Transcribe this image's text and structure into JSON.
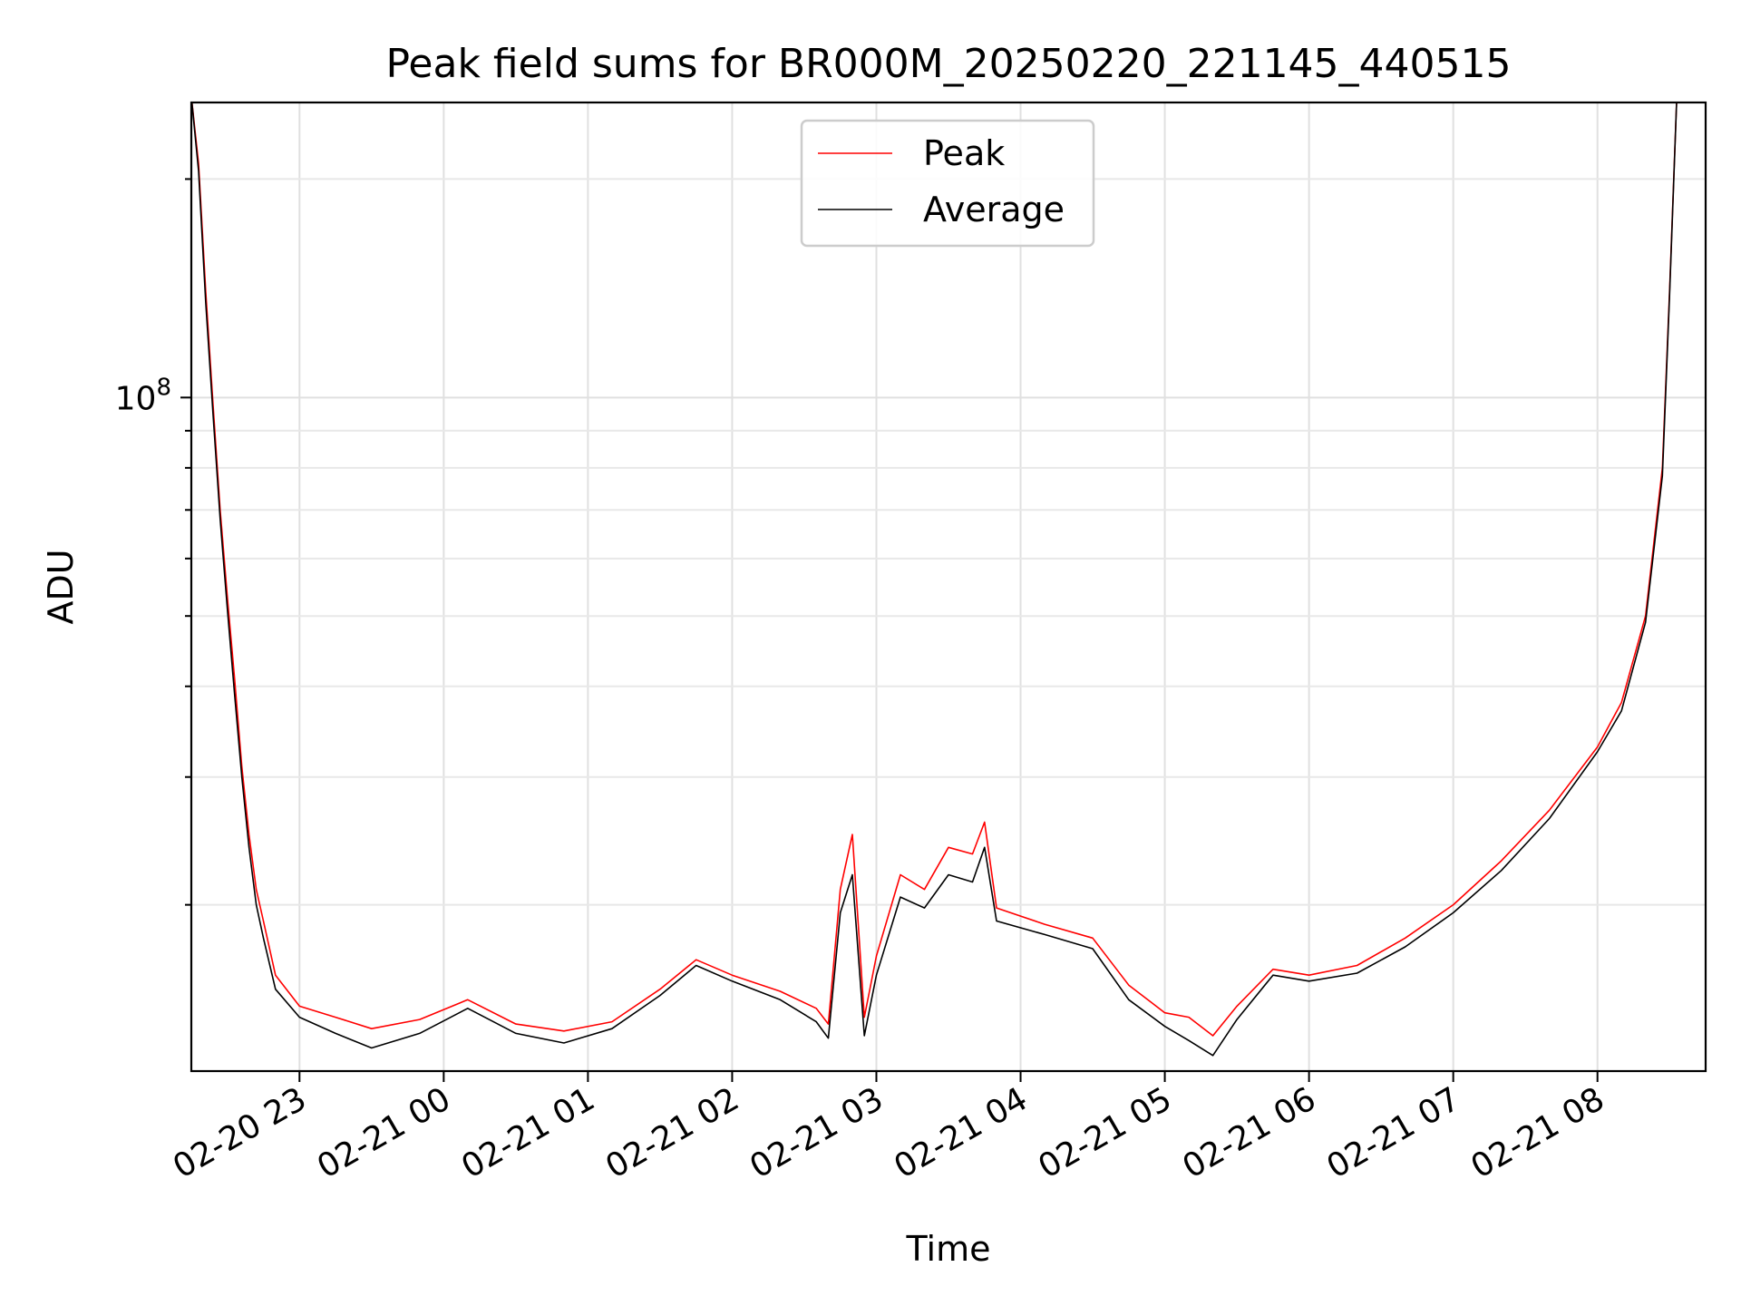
{
  "chart_data": {
    "type": "line",
    "title": "Peak field sums for BR000M_20250220_221145_440515",
    "xlabel": "Time",
    "ylabel": "ADU",
    "yscale": "log",
    "ylim": [
      11800000,
      255000000
    ],
    "xlim": [
      "2025-02-20 22:15",
      "2025-02-21 08:45"
    ],
    "grid": true,
    "legend_position": "upper center",
    "x_ticks": [
      "02-20 23",
      "02-21 00",
      "02-21 01",
      "02-21 02",
      "02-21 03",
      "02-21 04",
      "02-21 05",
      "02-21 06",
      "02-21 07",
      "02-21 08"
    ],
    "y_major_tick": {
      "value": 100000000,
      "label_base": "10",
      "label_exp": "8"
    },
    "colors": {
      "peak": "#ff0000",
      "average": "#000000"
    },
    "series": [
      {
        "name": "Peak",
        "color": "#ff0000",
        "x": [
          "2025-02-20 22:15",
          "2025-02-20 22:18",
          "2025-02-20 22:21",
          "2025-02-20 22:24",
          "2025-02-20 22:27",
          "2025-02-20 22:30",
          "2025-02-20 22:33",
          "2025-02-20 22:36",
          "2025-02-20 22:39",
          "2025-02-20 22:42",
          "2025-02-20 22:45",
          "2025-02-20 22:50",
          "2025-02-20 23:00",
          "2025-02-20 23:15",
          "2025-02-20 23:30",
          "2025-02-20 23:50",
          "2025-02-21 00:10",
          "2025-02-21 00:30",
          "2025-02-21 00:50",
          "2025-02-21 01:10",
          "2025-02-21 01:30",
          "2025-02-21 01:45",
          "2025-02-21 02:00",
          "2025-02-21 02:20",
          "2025-02-21 02:35",
          "2025-02-21 02:40",
          "2025-02-21 02:45",
          "2025-02-21 02:50",
          "2025-02-21 02:55",
          "2025-02-21 03:00",
          "2025-02-21 03:10",
          "2025-02-21 03:20",
          "2025-02-21 03:30",
          "2025-02-21 03:40",
          "2025-02-21 03:45",
          "2025-02-21 03:50",
          "2025-02-21 04:10",
          "2025-02-21 04:30",
          "2025-02-21 04:45",
          "2025-02-21 05:00",
          "2025-02-21 05:10",
          "2025-02-21 05:20",
          "2025-02-21 05:30",
          "2025-02-21 05:45",
          "2025-02-21 06:00",
          "2025-02-21 06:20",
          "2025-02-21 06:40",
          "2025-02-21 07:00",
          "2025-02-21 07:20",
          "2025-02-21 07:40",
          "2025-02-21 08:00",
          "2025-02-21 08:10",
          "2025-02-21 08:20",
          "2025-02-21 08:27",
          "2025-02-21 08:30",
          "2025-02-21 08:33"
        ],
        "values": [
          260000000,
          210000000,
          140000000,
          98000000,
          70000000,
          53000000,
          41000000,
          31000000,
          25000000,
          21000000,
          19000000,
          16000000,
          14500000,
          14000000,
          13500000,
          13900000,
          14800000,
          13700000,
          13400000,
          13800000,
          15300000,
          16800000,
          16000000,
          15200000,
          14400000,
          13700000,
          21000000,
          25000000,
          14000000,
          17000000,
          22000000,
          21000000,
          24000000,
          23500000,
          26000000,
          19800000,
          18800000,
          18000000,
          15500000,
          14200000,
          14000000,
          13200000,
          14500000,
          16300000,
          16000000,
          16500000,
          18000000,
          20000000,
          23000000,
          27000000,
          33000000,
          38000000,
          50000000,
          80000000,
          140000000,
          260000000
        ]
      },
      {
        "name": "Average",
        "color": "#000000",
        "x": [
          "2025-02-20 22:15",
          "2025-02-20 22:18",
          "2025-02-20 22:21",
          "2025-02-20 22:24",
          "2025-02-20 22:27",
          "2025-02-20 22:30",
          "2025-02-20 22:33",
          "2025-02-20 22:36",
          "2025-02-20 22:39",
          "2025-02-20 22:42",
          "2025-02-20 22:45",
          "2025-02-20 22:50",
          "2025-02-20 23:00",
          "2025-02-20 23:15",
          "2025-02-20 23:30",
          "2025-02-20 23:50",
          "2025-02-21 00:10",
          "2025-02-21 00:30",
          "2025-02-21 00:50",
          "2025-02-21 01:10",
          "2025-02-21 01:30",
          "2025-02-21 01:45",
          "2025-02-21 02:00",
          "2025-02-21 02:20",
          "2025-02-21 02:35",
          "2025-02-21 02:40",
          "2025-02-21 02:45",
          "2025-02-21 02:50",
          "2025-02-21 02:55",
          "2025-02-21 03:00",
          "2025-02-21 03:10",
          "2025-02-21 03:20",
          "2025-02-21 03:30",
          "2025-02-21 03:40",
          "2025-02-21 03:45",
          "2025-02-21 03:50",
          "2025-02-21 04:10",
          "2025-02-21 04:30",
          "2025-02-21 04:45",
          "2025-02-21 05:00",
          "2025-02-21 05:10",
          "2025-02-21 05:20",
          "2025-02-21 05:30",
          "2025-02-21 05:45",
          "2025-02-21 06:00",
          "2025-02-21 06:20",
          "2025-02-21 06:40",
          "2025-02-21 07:00",
          "2025-02-21 07:20",
          "2025-02-21 07:40",
          "2025-02-21 08:00",
          "2025-02-21 08:10",
          "2025-02-21 08:20",
          "2025-02-21 08:27",
          "2025-02-21 08:30",
          "2025-02-21 08:33"
        ],
        "values": [
          260000000,
          205000000,
          135000000,
          95000000,
          68000000,
          51000000,
          39000000,
          30000000,
          24000000,
          20000000,
          18000000,
          15300000,
          14000000,
          13300000,
          12700000,
          13300000,
          14400000,
          13300000,
          12900000,
          13500000,
          15000000,
          16500000,
          15700000,
          14800000,
          13800000,
          13100000,
          19500000,
          22000000,
          13200000,
          16000000,
          20500000,
          19800000,
          22000000,
          21500000,
          24000000,
          19000000,
          18200000,
          17400000,
          14800000,
          13600000,
          13000000,
          12400000,
          13900000,
          16000000,
          15700000,
          16100000,
          17500000,
          19500000,
          22300000,
          26300000,
          32500000,
          37000000,
          49000000,
          78000000,
          138000000,
          260000000
        ]
      }
    ]
  }
}
